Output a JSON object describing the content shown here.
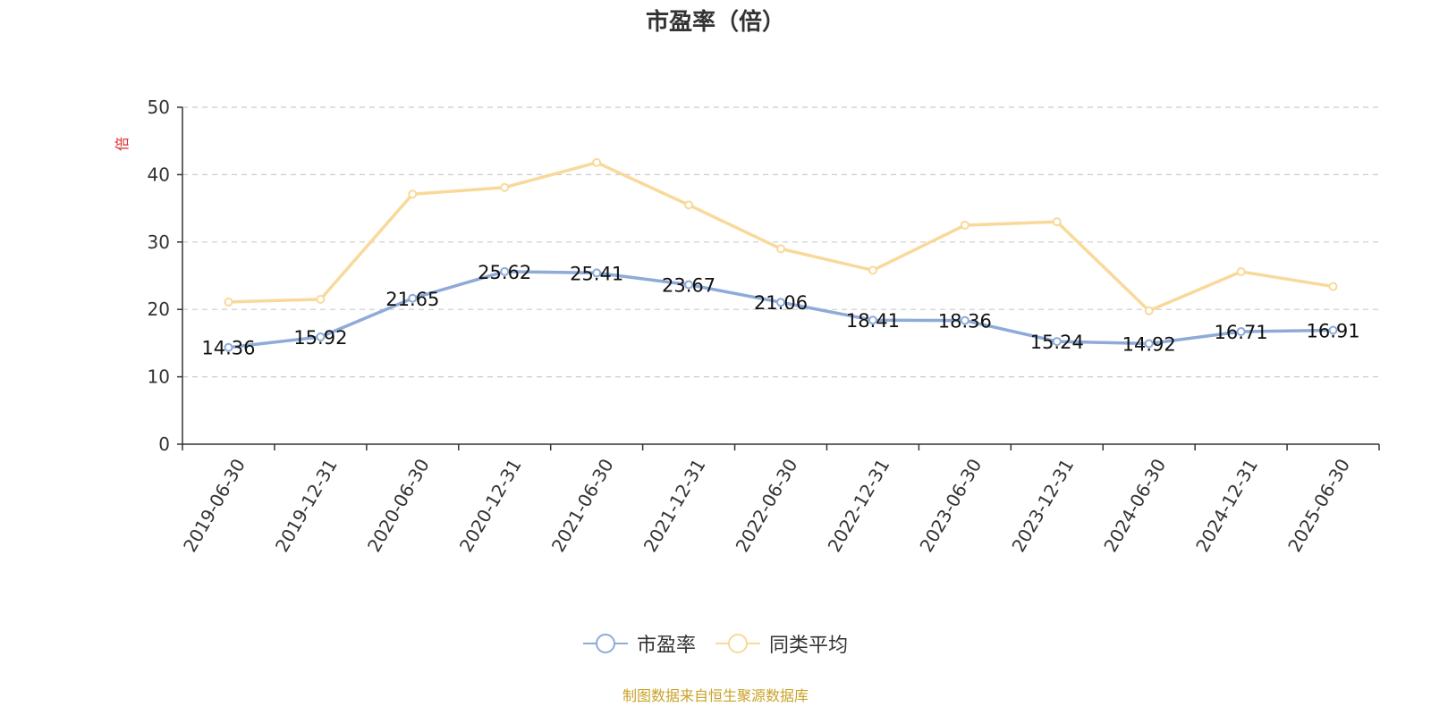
{
  "chart_data": {
    "type": "line",
    "title": "市盈率（倍）",
    "ylabel": "倍",
    "ylim": [
      0,
      50
    ],
    "yticks": [
      0,
      10,
      20,
      30,
      40,
      50
    ],
    "grid": true,
    "legend_position": "bottom-center",
    "x": [
      "2019-06-30",
      "2019-12-31",
      "2020-06-30",
      "2020-12-31",
      "2021-06-30",
      "2021-12-31",
      "2022-06-30",
      "2022-12-31",
      "2023-06-30",
      "2023-12-31",
      "2024-06-30",
      "2024-12-31",
      "2025-06-30"
    ],
    "series": [
      {
        "name": "市盈率",
        "color": "#8eaad8",
        "values": [
          14.36,
          15.92,
          21.65,
          25.62,
          25.41,
          23.67,
          21.06,
          18.41,
          18.36,
          15.24,
          14.92,
          16.71,
          16.91
        ],
        "labels": [
          "14.36",
          "15.92",
          "21.65",
          "25.62",
          "25.41",
          "23.67",
          "21.06",
          "18.41",
          "18.36",
          "15.24",
          "14.92",
          "16.71",
          "16.91"
        ]
      },
      {
        "name": "同类平均",
        "color": "#f9d99a",
        "values": [
          21.1,
          21.5,
          37.1,
          38.1,
          41.8,
          35.5,
          29.0,
          25.8,
          32.5,
          33.0,
          19.8,
          25.6,
          23.4
        ]
      }
    ]
  },
  "source_note": "制图数据来自恒生聚源数据库",
  "colors": {
    "axis": "#333333",
    "grid": "#cccccc",
    "ylabel": "#e0282d",
    "source_note": "#c9a227"
  }
}
